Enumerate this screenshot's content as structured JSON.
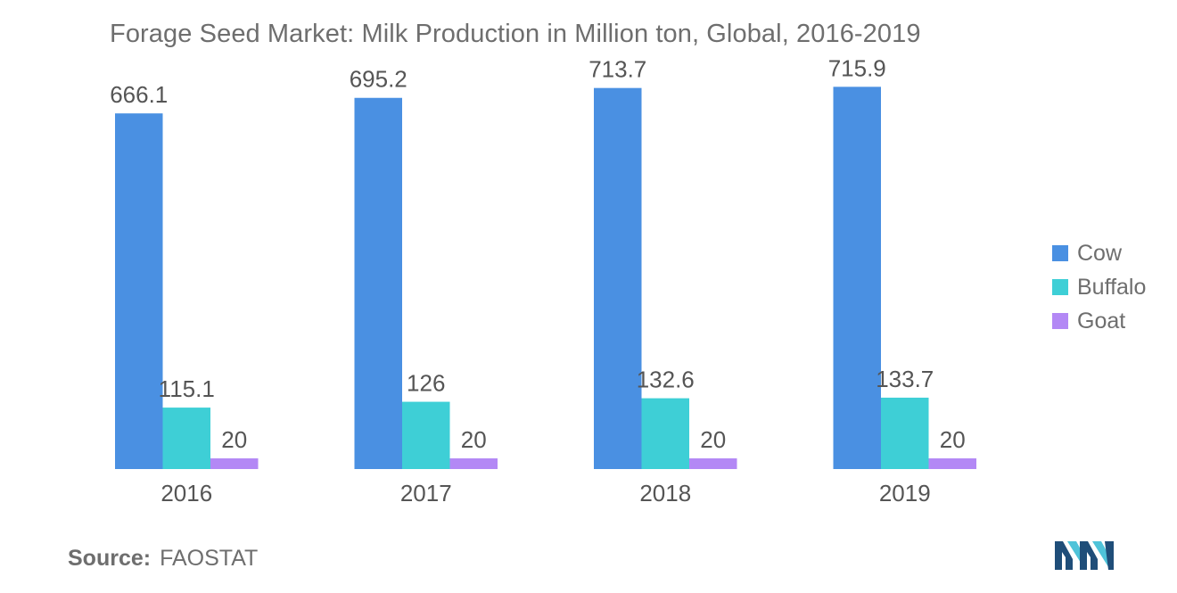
{
  "chart_data": {
    "type": "bar",
    "title": "Forage Seed Market: Milk Production in Million ton, Global, 2016-2019",
    "categories": [
      "2016",
      "2017",
      "2018",
      "2019"
    ],
    "series": [
      {
        "name": "Cow",
        "values": [
          666.1,
          695.2,
          713.7,
          715.9
        ],
        "labels": [
          "666.1",
          "695.2",
          "713.7",
          "715.9"
        ],
        "color": "#4a90e2"
      },
      {
        "name": "Buffalo",
        "values": [
          115.1,
          126,
          132.6,
          133.7
        ],
        "labels": [
          "115.1",
          "126",
          "132.6",
          "133.7"
        ],
        "color": "#3ecfd6"
      },
      {
        "name": "Goat",
        "values": [
          20,
          20,
          20,
          20
        ],
        "labels": [
          "20",
          "20",
          "20",
          "20"
        ],
        "color": "#b388f5"
      }
    ],
    "ylim": [
      0,
      800
    ],
    "grid": false,
    "legend_position": "right"
  },
  "source": {
    "key": "Source:",
    "value": "FAOSTAT"
  }
}
